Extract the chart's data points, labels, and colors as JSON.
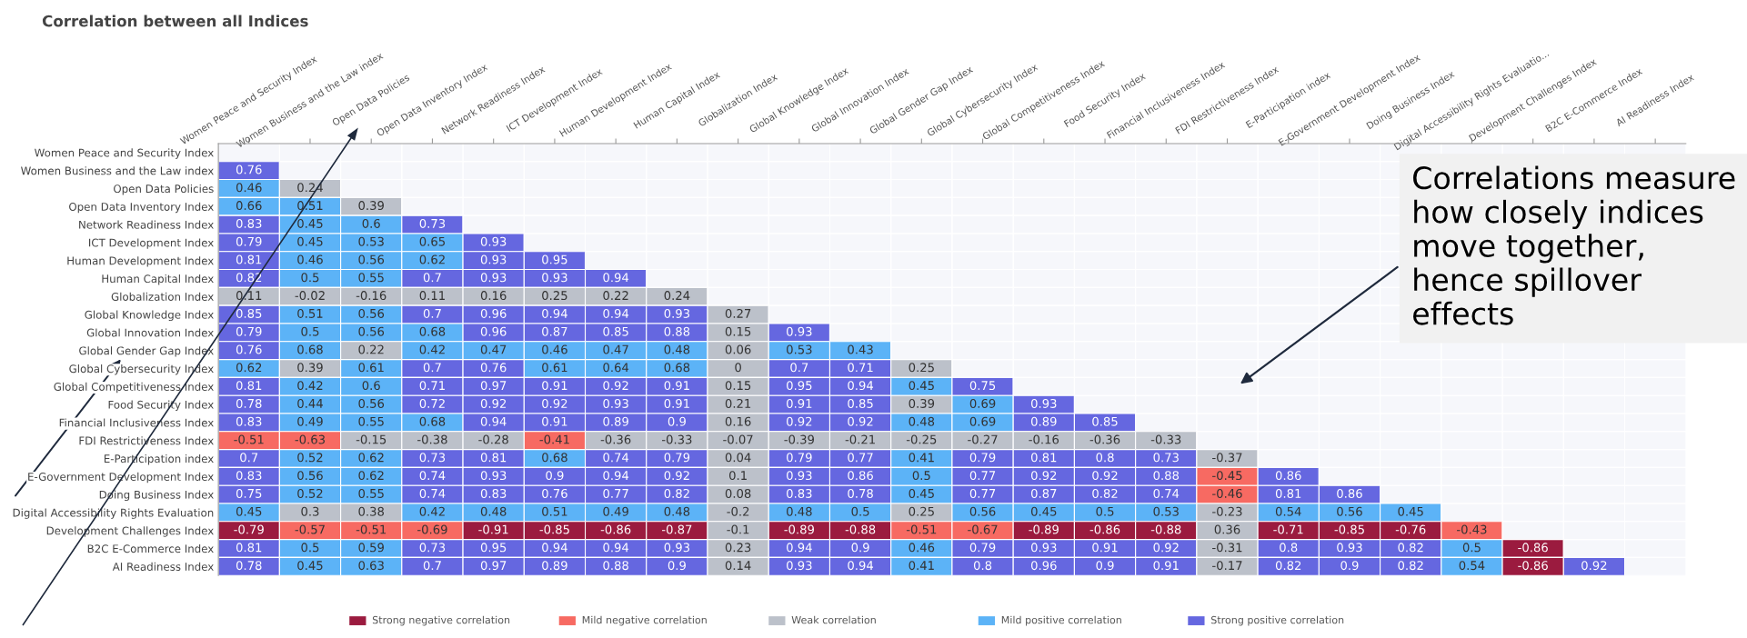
{
  "chart_data": {
    "type": "heatmap",
    "title": "Correlation between all Indices",
    "categories": [
      "Women Peace and Security Index",
      "Women Business and the Law index",
      "Open Data Policies",
      "Open Data Inventory Index",
      "Network Readiness Index",
      "ICT Development Index",
      "Human Development Index",
      "Human Capital Index",
      "Globalization Index",
      "Global Knowledge Index",
      "Global Innovation Index",
      "Global Gender Gap Index",
      "Global Cybersecurity Index",
      "Global Competitiveness Index",
      "Food Security Index",
      "Financial Inclusiveness Index",
      "FDI Restrictiveness Index",
      "E-Participation index",
      "E-Government Development Index",
      "Doing Business Index",
      "Digital Accessibility Rights Evaluatio...",
      "Development Challenges Index",
      "B2C E-Commerce Index",
      "AI Readiness Index"
    ],
    "y_categories": [
      "Women Peace and Security Index",
      "Women Business and the Law index",
      "Open Data Policies",
      "Open Data Inventory Index",
      "Network Readiness Index",
      "ICT Development Index",
      "Human Development Index",
      "Human Capital Index",
      "Globalization Index",
      "Global Knowledge Index",
      "Global Innovation Index",
      "Global Gender Gap Index",
      "Global Cybersecurity Index",
      "Global Competitiveness Index",
      "Food Security Index",
      "Financial Inclusiveness Index",
      "FDI Restrictiveness Index",
      "E-Participation index",
      "E-Government Development Index",
      "Doing Business Index",
      "Digital Accessibility Rights Evaluation",
      "Development Challenges Index",
      "B2C E-Commerce Index",
      "AI Readiness Index"
    ],
    "cells": [
      [
        null,
        null,
        null,
        null,
        null,
        null,
        null,
        null,
        null,
        null,
        null,
        null,
        null,
        null,
        null,
        null,
        null,
        null,
        null,
        null,
        null,
        null,
        null,
        null
      ],
      [
        0.76,
        null,
        null,
        null,
        null,
        null,
        null,
        null,
        null,
        null,
        null,
        null,
        null,
        null,
        null,
        null,
        null,
        null,
        null,
        null,
        null,
        null,
        null,
        null
      ],
      [
        0.46,
        0.24,
        null,
        null,
        null,
        null,
        null,
        null,
        null,
        null,
        null,
        null,
        null,
        null,
        null,
        null,
        null,
        null,
        null,
        null,
        null,
        null,
        null,
        null
      ],
      [
        0.66,
        0.51,
        0.39,
        null,
        null,
        null,
        null,
        null,
        null,
        null,
        null,
        null,
        null,
        null,
        null,
        null,
        null,
        null,
        null,
        null,
        null,
        null,
        null,
        null
      ],
      [
        0.83,
        0.45,
        0.6,
        0.73,
        null,
        null,
        null,
        null,
        null,
        null,
        null,
        null,
        null,
        null,
        null,
        null,
        null,
        null,
        null,
        null,
        null,
        null,
        null,
        null
      ],
      [
        0.79,
        0.45,
        0.53,
        0.65,
        0.93,
        null,
        null,
        null,
        null,
        null,
        null,
        null,
        null,
        null,
        null,
        null,
        null,
        null,
        null,
        null,
        null,
        null,
        null,
        null
      ],
      [
        0.81,
        0.46,
        0.56,
        0.62,
        0.93,
        0.95,
        null,
        null,
        null,
        null,
        null,
        null,
        null,
        null,
        null,
        null,
        null,
        null,
        null,
        null,
        null,
        null,
        null,
        null
      ],
      [
        0.82,
        0.5,
        0.55,
        0.7,
        0.93,
        0.93,
        0.94,
        null,
        null,
        null,
        null,
        null,
        null,
        null,
        null,
        null,
        null,
        null,
        null,
        null,
        null,
        null,
        null,
        null
      ],
      [
        0.11,
        -0.02,
        -0.16,
        0.11,
        0.16,
        0.25,
        0.22,
        0.24,
        null,
        null,
        null,
        null,
        null,
        null,
        null,
        null,
        null,
        null,
        null,
        null,
        null,
        null,
        null,
        null
      ],
      [
        0.85,
        0.51,
        0.56,
        0.7,
        0.96,
        0.94,
        0.94,
        0.93,
        0.27,
        null,
        null,
        null,
        null,
        null,
        null,
        null,
        null,
        null,
        null,
        null,
        null,
        null,
        null,
        null
      ],
      [
        0.79,
        0.5,
        0.56,
        0.68,
        0.96,
        0.87,
        0.85,
        0.88,
        0.15,
        0.93,
        null,
        null,
        null,
        null,
        null,
        null,
        null,
        null,
        null,
        null,
        null,
        null,
        null,
        null
      ],
      [
        0.76,
        0.68,
        0.22,
        0.42,
        0.47,
        0.46,
        0.47,
        0.48,
        0.06,
        0.53,
        0.43,
        null,
        null,
        null,
        null,
        null,
        null,
        null,
        null,
        null,
        null,
        null,
        null,
        null
      ],
      [
        0.62,
        0.39,
        0.61,
        0.7,
        0.76,
        0.61,
        0.64,
        0.68,
        0,
        0.7,
        0.71,
        0.25,
        null,
        null,
        null,
        null,
        null,
        null,
        null,
        null,
        null,
        null,
        null,
        null
      ],
      [
        0.81,
        0.42,
        0.6,
        0.71,
        0.97,
        0.91,
        0.92,
        0.91,
        0.15,
        0.95,
        0.94,
        0.45,
        0.75,
        null,
        null,
        null,
        null,
        null,
        null,
        null,
        null,
        null,
        null,
        null
      ],
      [
        0.78,
        0.44,
        0.56,
        0.72,
        0.92,
        0.92,
        0.93,
        0.91,
        0.21,
        0.91,
        0.85,
        0.39,
        0.69,
        0.93,
        null,
        null,
        null,
        null,
        null,
        null,
        null,
        null,
        null,
        null
      ],
      [
        0.83,
        0.49,
        0.55,
        0.68,
        0.94,
        0.91,
        0.89,
        0.9,
        0.16,
        0.92,
        0.92,
        0.48,
        0.69,
        0.89,
        0.85,
        null,
        null,
        null,
        null,
        null,
        null,
        null,
        null,
        null
      ],
      [
        -0.51,
        -0.63,
        -0.15,
        -0.38,
        -0.28,
        -0.41,
        -0.36,
        -0.33,
        -0.07,
        -0.39,
        -0.21,
        -0.25,
        -0.27,
        -0.16,
        -0.36,
        -0.33,
        null,
        null,
        null,
        null,
        null,
        null,
        null,
        null
      ],
      [
        0.7,
        0.52,
        0.62,
        0.73,
        0.81,
        0.68,
        0.74,
        0.79,
        0.04,
        0.79,
        0.77,
        0.41,
        0.79,
        0.81,
        0.8,
        0.73,
        -0.37,
        null,
        null,
        null,
        null,
        null,
        null,
        null
      ],
      [
        0.83,
        0.56,
        0.62,
        0.74,
        0.93,
        0.9,
        0.94,
        0.92,
        0.1,
        0.93,
        0.86,
        0.5,
        0.77,
        0.92,
        0.92,
        0.88,
        -0.45,
        0.86,
        null,
        null,
        null,
        null,
        null,
        null
      ],
      [
        0.75,
        0.52,
        0.55,
        0.74,
        0.83,
        0.76,
        0.77,
        0.82,
        0.08,
        0.83,
        0.78,
        0.45,
        0.77,
        0.87,
        0.82,
        0.74,
        -0.46,
        0.81,
        0.86,
        null,
        null,
        null,
        null,
        null
      ],
      [
        0.45,
        0.3,
        0.38,
        0.42,
        0.48,
        0.51,
        0.49,
        0.48,
        -0.2,
        0.48,
        0.5,
        0.25,
        0.56,
        0.45,
        0.5,
        0.53,
        -0.23,
        0.54,
        0.56,
        0.45,
        null,
        null,
        null,
        null
      ],
      [
        -0.79,
        -0.57,
        -0.51,
        -0.69,
        -0.91,
        -0.85,
        -0.86,
        -0.87,
        -0.1,
        -0.89,
        -0.88,
        -0.51,
        -0.67,
        -0.89,
        -0.86,
        -0.88,
        0.36,
        -0.71,
        -0.85,
        -0.76,
        -0.43,
        null,
        null,
        null
      ],
      [
        0.81,
        0.5,
        0.59,
        0.73,
        0.95,
        0.94,
        0.94,
        0.93,
        0.23,
        0.94,
        0.9,
        0.46,
        0.79,
        0.93,
        0.91,
        0.92,
        -0.31,
        0.8,
        0.93,
        0.82,
        0.5,
        -0.86,
        null,
        null
      ],
      [
        0.78,
        0.45,
        0.63,
        0.7,
        0.97,
        0.89,
        0.88,
        0.9,
        0.14,
        0.93,
        0.94,
        0.41,
        0.8,
        0.96,
        0.9,
        0.91,
        -0.17,
        0.82,
        0.9,
        0.82,
        0.54,
        -0.86,
        0.92,
        null
      ]
    ],
    "colors": [
      [
        null,
        null,
        null,
        null,
        null,
        null,
        null,
        null,
        null,
        null,
        null,
        null,
        null,
        null,
        null,
        null,
        null,
        null,
        null,
        null,
        null,
        null,
        null,
        null
      ],
      [
        "#6567e0",
        null,
        null,
        null,
        null,
        null,
        null,
        null,
        null,
        null,
        null,
        null,
        null,
        null,
        null,
        null,
        null,
        null,
        null,
        null,
        null,
        null,
        null,
        null
      ],
      [
        "#5cb3f7",
        "#bcc1ca",
        null,
        null,
        null,
        null,
        null,
        null,
        null,
        null,
        null,
        null,
        null,
        null,
        null,
        null,
        null,
        null,
        null,
        null,
        null,
        null,
        null,
        null
      ],
      [
        "#5cb3f7",
        "#5cb3f7",
        "#bcc1ca",
        null,
        null,
        null,
        null,
        null,
        null,
        null,
        null,
        null,
        null,
        null,
        null,
        null,
        null,
        null,
        null,
        null,
        null,
        null,
        null,
        null
      ],
      [
        "#6567e0",
        "#5cb3f7",
        "#5cb3f7",
        "#6567e0",
        null,
        null,
        null,
        null,
        null,
        null,
        null,
        null,
        null,
        null,
        null,
        null,
        null,
        null,
        null,
        null,
        null,
        null,
        null,
        null
      ],
      [
        "#6567e0",
        "#5cb3f7",
        "#5cb3f7",
        "#5cb3f7",
        "#6567e0",
        null,
        null,
        null,
        null,
        null,
        null,
        null,
        null,
        null,
        null,
        null,
        null,
        null,
        null,
        null,
        null,
        null,
        null,
        null
      ],
      [
        "#6567e0",
        "#5cb3f7",
        "#5cb3f7",
        "#5cb3f7",
        "#6567e0",
        "#6567e0",
        null,
        null,
        null,
        null,
        null,
        null,
        null,
        null,
        null,
        null,
        null,
        null,
        null,
        null,
        null,
        null,
        null,
        null
      ],
      [
        "#6567e0",
        "#5cb3f7",
        "#5cb3f7",
        "#6567e0",
        "#6567e0",
        "#6567e0",
        "#6567e0",
        null,
        null,
        null,
        null,
        null,
        null,
        null,
        null,
        null,
        null,
        null,
        null,
        null,
        null,
        null,
        null,
        null
      ],
      [
        "#bcc1ca",
        "#bcc1ca",
        "#bcc1ca",
        "#bcc1ca",
        "#bcc1ca",
        "#bcc1ca",
        "#bcc1ca",
        "#bcc1ca",
        null,
        null,
        null,
        null,
        null,
        null,
        null,
        null,
        null,
        null,
        null,
        null,
        null,
        null,
        null,
        null
      ],
      [
        "#6567e0",
        "#5cb3f7",
        "#5cb3f7",
        "#6567e0",
        "#6567e0",
        "#6567e0",
        "#6567e0",
        "#6567e0",
        "#bcc1ca",
        null,
        null,
        null,
        null,
        null,
        null,
        null,
        null,
        null,
        null,
        null,
        null,
        null,
        null,
        null
      ],
      [
        "#6567e0",
        "#5cb3f7",
        "#5cb3f7",
        "#5cb3f7",
        "#6567e0",
        "#6567e0",
        "#6567e0",
        "#6567e0",
        "#bcc1ca",
        "#6567e0",
        null,
        null,
        null,
        null,
        null,
        null,
        null,
        null,
        null,
        null,
        null,
        null,
        null,
        null
      ],
      [
        "#6567e0",
        "#5cb3f7",
        "#bcc1ca",
        "#5cb3f7",
        "#5cb3f7",
        "#5cb3f7",
        "#5cb3f7",
        "#5cb3f7",
        "#bcc1ca",
        "#5cb3f7",
        "#5cb3f7",
        null,
        null,
        null,
        null,
        null,
        null,
        null,
        null,
        null,
        null,
        null,
        null,
        null
      ],
      [
        "#5cb3f7",
        "#bcc1ca",
        "#5cb3f7",
        "#6567e0",
        "#6567e0",
        "#5cb3f7",
        "#5cb3f7",
        "#5cb3f7",
        "#bcc1ca",
        "#6567e0",
        "#6567e0",
        "#bcc1ca",
        null,
        null,
        null,
        null,
        null,
        null,
        null,
        null,
        null,
        null,
        null,
        null
      ],
      [
        "#6567e0",
        "#5cb3f7",
        "#5cb3f7",
        "#6567e0",
        "#6567e0",
        "#6567e0",
        "#6567e0",
        "#6567e0",
        "#bcc1ca",
        "#6567e0",
        "#6567e0",
        "#5cb3f7",
        "#6567e0",
        null,
        null,
        null,
        null,
        null,
        null,
        null,
        null,
        null,
        null,
        null
      ],
      [
        "#6567e0",
        "#5cb3f7",
        "#5cb3f7",
        "#6567e0",
        "#6567e0",
        "#6567e0",
        "#6567e0",
        "#6567e0",
        "#bcc1ca",
        "#6567e0",
        "#6567e0",
        "#bcc1ca",
        "#5cb3f7",
        "#6567e0",
        null,
        null,
        null,
        null,
        null,
        null,
        null,
        null,
        null,
        null
      ],
      [
        "#6567e0",
        "#5cb3f7",
        "#5cb3f7",
        "#5cb3f7",
        "#6567e0",
        "#6567e0",
        "#6567e0",
        "#6567e0",
        "#bcc1ca",
        "#6567e0",
        "#6567e0",
        "#5cb3f7",
        "#5cb3f7",
        "#6567e0",
        "#6567e0",
        null,
        null,
        null,
        null,
        null,
        null,
        null,
        null,
        null
      ],
      [
        "#f76a62",
        "#f76a62",
        "#bcc1ca",
        "#bcc1ca",
        "#bcc1ca",
        "#f76a62",
        "#bcc1ca",
        "#bcc1ca",
        "#bcc1ca",
        "#bcc1ca",
        "#bcc1ca",
        "#bcc1ca",
        "#bcc1ca",
        "#bcc1ca",
        "#bcc1ca",
        "#bcc1ca",
        null,
        null,
        null,
        null,
        null,
        null,
        null,
        null
      ],
      [
        "#6567e0",
        "#5cb3f7",
        "#5cb3f7",
        "#6567e0",
        "#6567e0",
        "#5cb3f7",
        "#6567e0",
        "#6567e0",
        "#bcc1ca",
        "#6567e0",
        "#6567e0",
        "#5cb3f7",
        "#6567e0",
        "#6567e0",
        "#6567e0",
        "#6567e0",
        "#bcc1ca",
        null,
        null,
        null,
        null,
        null,
        null,
        null
      ],
      [
        "#6567e0",
        "#5cb3f7",
        "#5cb3f7",
        "#6567e0",
        "#6567e0",
        "#6567e0",
        "#6567e0",
        "#6567e0",
        "#bcc1ca",
        "#6567e0",
        "#6567e0",
        "#5cb3f7",
        "#6567e0",
        "#6567e0",
        "#6567e0",
        "#6567e0",
        "#f76a62",
        "#6567e0",
        null,
        null,
        null,
        null,
        null,
        null
      ],
      [
        "#6567e0",
        "#5cb3f7",
        "#5cb3f7",
        "#6567e0",
        "#6567e0",
        "#6567e0",
        "#6567e0",
        "#6567e0",
        "#bcc1ca",
        "#6567e0",
        "#6567e0",
        "#5cb3f7",
        "#6567e0",
        "#6567e0",
        "#6567e0",
        "#6567e0",
        "#f76a62",
        "#6567e0",
        "#6567e0",
        null,
        null,
        null,
        null,
        null
      ],
      [
        "#5cb3f7",
        "#bcc1ca",
        "#bcc1ca",
        "#5cb3f7",
        "#5cb3f7",
        "#5cb3f7",
        "#5cb3f7",
        "#5cb3f7",
        "#bcc1ca",
        "#5cb3f7",
        "#5cb3f7",
        "#bcc1ca",
        "#5cb3f7",
        "#5cb3f7",
        "#5cb3f7",
        "#5cb3f7",
        "#bcc1ca",
        "#5cb3f7",
        "#5cb3f7",
        "#5cb3f7",
        null,
        null,
        null,
        null
      ],
      [
        "#9b1b3f",
        "#f76a62",
        "#f76a62",
        "#f76a62",
        "#9b1b3f",
        "#9b1b3f",
        "#9b1b3f",
        "#9b1b3f",
        "#bcc1ca",
        "#9b1b3f",
        "#9b1b3f",
        "#f76a62",
        "#f76a62",
        "#9b1b3f",
        "#9b1b3f",
        "#9b1b3f",
        "#bcc1ca",
        "#9b1b3f",
        "#9b1b3f",
        "#9b1b3f",
        "#f76a62",
        null,
        null,
        null
      ],
      [
        "#6567e0",
        "#5cb3f7",
        "#5cb3f7",
        "#6567e0",
        "#6567e0",
        "#6567e0",
        "#6567e0",
        "#6567e0",
        "#bcc1ca",
        "#6567e0",
        "#6567e0",
        "#5cb3f7",
        "#6567e0",
        "#6567e0",
        "#6567e0",
        "#6567e0",
        "#bcc1ca",
        "#6567e0",
        "#6567e0",
        "#6567e0",
        "#5cb3f7",
        "#9b1b3f",
        null,
        null
      ],
      [
        "#6567e0",
        "#5cb3f7",
        "#5cb3f7",
        "#6567e0",
        "#6567e0",
        "#6567e0",
        "#6567e0",
        "#6567e0",
        "#bcc1ca",
        "#6567e0",
        "#6567e0",
        "#5cb3f7",
        "#6567e0",
        "#6567e0",
        "#6567e0",
        "#6567e0",
        "#bcc1ca",
        "#6567e0",
        "#6567e0",
        "#6567e0",
        "#5cb3f7",
        "#9b1b3f",
        "#6567e0",
        null
      ]
    ],
    "data_labels": true,
    "annotations": [
      "Correlations measure how closely indices move together, hence spillover effects",
      "Strong negative correlation",
      "Mild negative correlation",
      "Weak correlation",
      "Mild positive correlation",
      "Strong positive correlation"
    ]
  }
}
